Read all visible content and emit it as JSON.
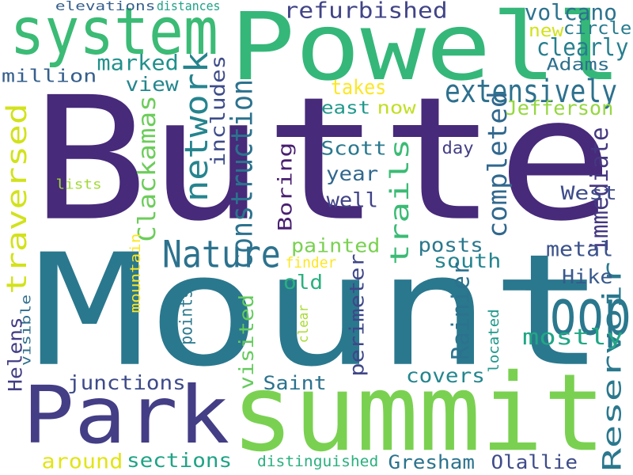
{
  "words": [
    {
      "text": "Butte",
      "color": "#472a7a",
      "vertical": false
    },
    {
      "text": "Mount",
      "color": "#2a788e",
      "vertical": false
    },
    {
      "text": "summit",
      "color": "#7ad151",
      "vertical": false
    },
    {
      "text": "Park",
      "color": "#433e85",
      "vertical": false
    },
    {
      "text": "Powell",
      "color": "#35b779",
      "vertical": false
    },
    {
      "text": "system",
      "color": "#3bbb75",
      "vertical": false
    },
    {
      "text": "loop",
      "color": "#2a788e",
      "vertical": false
    },
    {
      "text": "Nature",
      "color": "#2c728e",
      "vertical": false
    },
    {
      "text": "trails",
      "color": "#3bbb75",
      "vertical": true
    },
    {
      "text": "network",
      "color": "#25848e",
      "vertical": true
    },
    {
      "text": "traversed",
      "color": "#d2e21b",
      "vertical": true
    },
    {
      "text": "extensively",
      "color": "#2d708e",
      "vertical": false
    },
    {
      "text": "construction",
      "color": "#2c728e",
      "vertical": true
    },
    {
      "text": "refurbished",
      "color": "#414487",
      "vertical": false
    },
    {
      "text": "completed",
      "color": "#31688e",
      "vertical": true
    },
    {
      "text": "Reservoir",
      "color": "#2a788e",
      "vertical": true
    },
    {
      "text": "Clackamas",
      "color": "#6ccd5a",
      "vertical": true
    },
    {
      "text": "includes",
      "color": "#3e4c8a",
      "vertical": true
    },
    {
      "text": "volcano",
      "color": "#2c728e",
      "vertical": false
    },
    {
      "text": "clearly",
      "color": "#277f8e",
      "vertical": false
    },
    {
      "text": "new",
      "color": "#d2e21b",
      "vertical": false
    },
    {
      "text": "circle",
      "color": "#287c8e",
      "vertical": false
    },
    {
      "text": "Adams",
      "color": "#2d708e",
      "vertical": false
    },
    {
      "text": "marked",
      "color": "#21918c",
      "vertical": false
    },
    {
      "text": "million",
      "color": "#355f8d",
      "vertical": false
    },
    {
      "text": "view",
      "color": "#24878e",
      "vertical": false
    },
    {
      "text": "takes",
      "color": "#fde725",
      "vertical": false
    },
    {
      "text": "now",
      "color": "#c2df23",
      "vertical": false
    },
    {
      "text": "east",
      "color": "#1f988b",
      "vertical": false
    },
    {
      "text": "Jefferson",
      "color": "#95d840",
      "vertical": false
    },
    {
      "text": "Scott",
      "color": "#2a788e",
      "vertical": false
    },
    {
      "text": "year",
      "color": "#31688e",
      "vertical": false
    },
    {
      "text": "well",
      "color": "#414487",
      "vertical": false
    },
    {
      "text": "day",
      "color": "#433e85",
      "vertical": false
    },
    {
      "text": "immediate",
      "color": "#453781",
      "vertical": true
    },
    {
      "text": "West",
      "color": "#3e4c8a",
      "vertical": false
    },
    {
      "text": "Boring",
      "color": "#481f70",
      "vertical": true
    },
    {
      "text": "lists",
      "color": "#a2da37",
      "vertical": false
    },
    {
      "text": "painted",
      "color": "#7ad151",
      "vertical": false
    },
    {
      "text": "posts",
      "color": "#2a788e",
      "vertical": false
    },
    {
      "text": "metal",
      "color": "#3b528b",
      "vertical": false
    },
    {
      "text": "south",
      "color": "#25848e",
      "vertical": false
    },
    {
      "text": "finder",
      "color": "#fde725",
      "vertical": false
    },
    {
      "text": "old",
      "color": "#2ab07f",
      "vertical": false
    },
    {
      "text": "Hike",
      "color": "#38598c",
      "vertical": false
    },
    {
      "text": "mountain",
      "color": "#fde725",
      "vertical": true
    },
    {
      "text": "perimeter",
      "color": "#3f4788",
      "vertical": true
    },
    {
      "text": "Rainier",
      "color": "#2c728e",
      "vertical": true
    },
    {
      "text": "visited",
      "color": "#65cb5e",
      "vertical": true
    },
    {
      "text": "points",
      "color": "#2a788e",
      "vertical": true
    },
    {
      "text": "clear",
      "color": "#a8db34",
      "vertical": true
    },
    {
      "text": "located",
      "color": "#1f988b",
      "vertical": true
    },
    {
      "text": "mostly",
      "color": "#21a685",
      "vertical": false
    },
    {
      "text": "visible",
      "color": "#2e6e8e",
      "vertical": true
    },
    {
      "text": "Helens",
      "color": "#433e85",
      "vertical": true
    },
    {
      "text": "Saint",
      "color": "#2c728e",
      "vertical": false
    },
    {
      "text": "covers",
      "color": "#24868e",
      "vertical": false
    },
    {
      "text": "junctions",
      "color": "#3e4a89",
      "vertical": false
    },
    {
      "text": "around",
      "color": "#e2e418",
      "vertical": false
    },
    {
      "text": "sections",
      "color": "#20a386",
      "vertical": false
    },
    {
      "text": "distinguished",
      "color": "#2ab07f",
      "vertical": false
    },
    {
      "text": "Gresham",
      "color": "#2c738e",
      "vertical": false
    },
    {
      "text": "Olallie",
      "color": "#3e4c8a",
      "vertical": false
    },
    {
      "text": "elevations",
      "color": "#355f8d",
      "vertical": false
    },
    {
      "text": "distances",
      "color": "#1fa287",
      "vertical": false
    }
  ]
}
